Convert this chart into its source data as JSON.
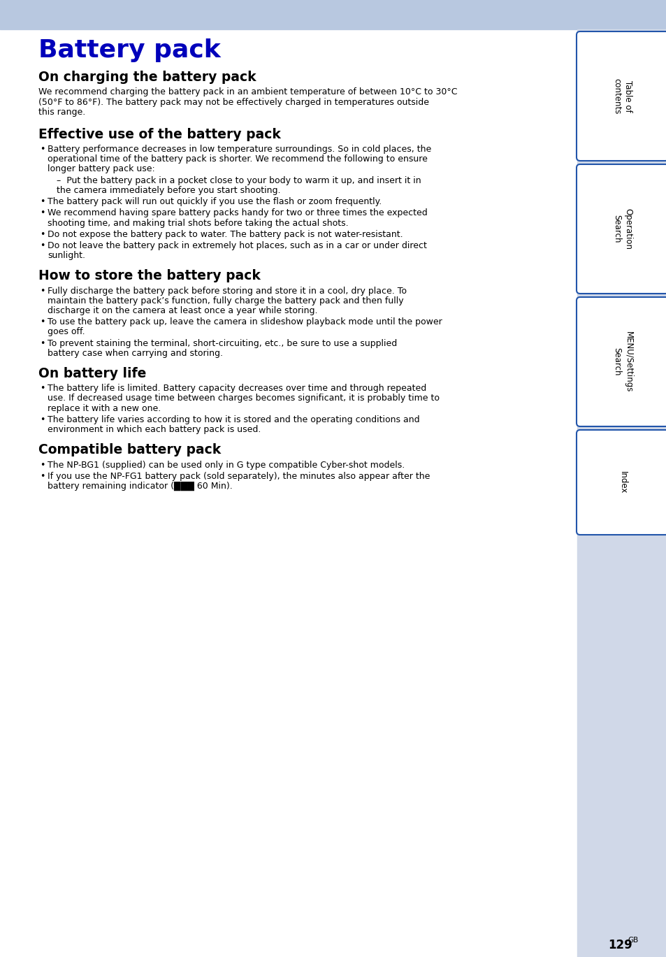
{
  "page_bg": "#ffffff",
  "header_bg": "#b8c8e0",
  "title": "Battery pack",
  "title_color": "#0000bb",
  "title_fontsize": 28,
  "section1_heading": "On charging the battery pack",
  "section1_text": "We recommend charging the battery pack in an ambient temperature of between 10°C to 30°C (50°F to 86°F). The battery pack may not be effectively charged in temperatures outside this range.",
  "section2_heading": "Effective use of the battery pack",
  "section2_content": [
    {
      "type": "bullet",
      "text": "Battery performance decreases in low temperature surroundings. So in cold places, the operational time of the battery pack is shorter. We recommend the following to ensure longer battery pack use:"
    },
    {
      "type": "sub",
      "text": "–  Put the battery pack in a pocket close to your body to warm it up, and insert it in the camera immediately before you start shooting."
    },
    {
      "type": "bullet",
      "text": "The battery pack will run out quickly if you use the flash or zoom frequently."
    },
    {
      "type": "bullet",
      "text": "We recommend having spare battery packs handy for two or three times the expected shooting time, and making trial shots before taking the actual shots."
    },
    {
      "type": "bullet",
      "text": "Do not expose the battery pack to water. The battery pack is not water-resistant."
    },
    {
      "type": "bullet",
      "text": "Do not leave the battery pack in extremely hot places, such as in a car or under direct sunlight."
    }
  ],
  "section3_heading": "How to store the battery pack",
  "section3_content": [
    {
      "type": "bullet",
      "text": "Fully discharge the battery pack before storing and store it in a cool, dry place. To maintain the battery pack’s function, fully charge the battery pack and then fully discharge it on the camera at least once a year while storing."
    },
    {
      "type": "bullet",
      "text": "To use the battery pack up, leave the camera in slideshow playback mode until the power goes off."
    },
    {
      "type": "bullet",
      "text": "To prevent staining the terminal, short-circuiting, etc., be sure to use a supplied battery case when carrying and storing."
    }
  ],
  "section4_heading": "On battery life",
  "section4_content": [
    {
      "type": "bullet",
      "text": "The battery life is limited. Battery capacity decreases over time and through repeated use. If decreased usage time between charges becomes significant, it is probably time to replace it with a new one."
    },
    {
      "type": "bullet",
      "text": "The battery life varies according to how it is stored and the operating conditions and environment in which each battery pack is used."
    }
  ],
  "section5_heading": "Compatible battery pack",
  "section5_content": [
    {
      "type": "bullet",
      "text": "The NP-BG1 (supplied) can be used only in G type compatible Cyber-shot models."
    },
    {
      "type": "bullet",
      "text": "If you use the NP-FG1 battery pack (sold separately), the minutes also appear after the battery remaining indicator (███ 60 Min)."
    }
  ],
  "page_number": "129",
  "page_number_suffix": "GB",
  "sidebar_labels": [
    "Table of\ncontents",
    "Operation\nSearch",
    "MENU/Settings\nSearch",
    "Index"
  ],
  "sidebar_color": "#ffffff",
  "sidebar_border": "#2255aa",
  "sidebar_bg": "#d0d8e8"
}
